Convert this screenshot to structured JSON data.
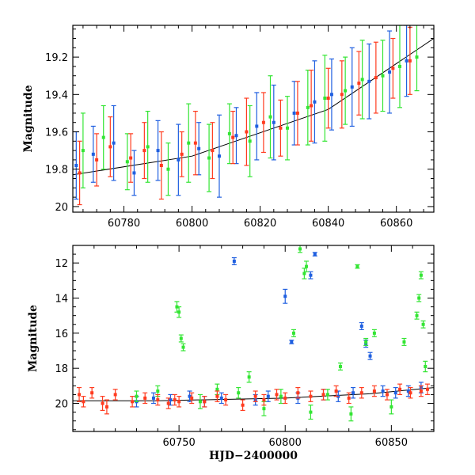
{
  "chart_data": [
    {
      "type": "scatter",
      "panel": "top",
      "xlabel": "",
      "ylabel": "Magnitude",
      "xlim": [
        60765,
        60871
      ],
      "ylim": [
        20.03,
        19.03
      ],
      "y_inverted": true,
      "xticks": [
        60780,
        60800,
        60820,
        60840,
        60860
      ],
      "yticks": [
        19.2,
        19.4,
        19.6,
        19.8,
        20
      ],
      "ytick_labels": [
        "19.2",
        "19.4",
        "19.6",
        "19.8",
        "20"
      ],
      "colors": {
        "blue": "#1f5fe0",
        "green": "#33e533",
        "red": "#ff3b1f"
      },
      "series": [
        {
          "color": "#1f5fe0",
          "x": [
            60766,
            60771,
            60777,
            60783,
            60790,
            60796,
            60802,
            60808,
            60813,
            60819,
            60824,
            60830,
            60836,
            60841,
            60847,
            60852,
            60858,
            60863
          ],
          "y": [
            19.78,
            19.72,
            19.66,
            19.82,
            19.7,
            19.75,
            19.69,
            19.73,
            19.62,
            19.57,
            19.55,
            19.5,
            19.44,
            19.4,
            19.36,
            19.33,
            19.28,
            19.22
          ],
          "err": [
            0.18,
            0.15,
            0.2,
            0.12,
            0.16,
            0.19,
            0.14,
            0.22,
            0.15,
            0.18,
            0.2,
            0.17,
            0.22,
            0.19,
            0.21,
            0.2,
            0.22,
            0.19
          ]
        },
        {
          "color": "#33e533",
          "x": [
            60768,
            60774,
            60781,
            60787,
            60793,
            60799,
            60805,
            60811,
            60817,
            60823,
            60828,
            60834,
            60839,
            60845,
            60850,
            60856,
            60861,
            60866
          ],
          "y": [
            19.7,
            19.63,
            19.76,
            19.68,
            19.8,
            19.66,
            19.74,
            19.61,
            19.65,
            19.52,
            19.58,
            19.47,
            19.42,
            19.38,
            19.32,
            19.3,
            19.25,
            19.2
          ],
          "err": [
            0.2,
            0.17,
            0.15,
            0.19,
            0.14,
            0.21,
            0.18,
            0.16,
            0.19,
            0.22,
            0.17,
            0.2,
            0.23,
            0.18,
            0.21,
            0.19,
            0.22,
            0.18
          ]
        },
        {
          "color": "#ff3b1f",
          "x": [
            60767,
            60772,
            60776,
            60782,
            60786,
            60791,
            60797,
            60801,
            60806,
            60812,
            60816,
            60821,
            60826,
            60831,
            60835,
            60840,
            60844,
            60849,
            60854,
            60859,
            60864
          ],
          "y": [
            19.82,
            19.75,
            19.68,
            19.74,
            19.7,
            19.78,
            19.72,
            19.66,
            19.7,
            19.63,
            19.6,
            19.55,
            19.58,
            19.5,
            19.46,
            19.42,
            19.4,
            19.34,
            19.31,
            19.26,
            19.22
          ],
          "err": [
            0.17,
            0.14,
            0.16,
            0.13,
            0.15,
            0.18,
            0.12,
            0.17,
            0.15,
            0.14,
            0.18,
            0.16,
            0.15,
            0.17,
            0.19,
            0.16,
            0.18,
            0.17,
            0.19,
            0.16,
            0.18
          ]
        }
      ],
      "model_line": {
        "x": [
          60765,
          60800,
          60840,
          60871
        ],
        "y": [
          19.83,
          19.73,
          19.48,
          19.1
        ]
      }
    },
    {
      "type": "scatter",
      "panel": "bottom",
      "xlabel": "HJD−2400000",
      "ylabel": "Magnitude",
      "xlim": [
        60700,
        60870
      ],
      "ylim": [
        21.6,
        11.0
      ],
      "y_inverted": true,
      "xticks": [
        60750,
        60800,
        60850
      ],
      "yticks": [
        12,
        14,
        16,
        18,
        20
      ],
      "ytick_labels": [
        "12",
        "14",
        "16",
        "18",
        "20"
      ],
      "series": [
        {
          "color": "#1f5fe0",
          "x": [
            60730,
            60738,
            60746,
            60755,
            60762,
            60770,
            60776,
            60786,
            60792,
            60800,
            60803,
            60806,
            60812,
            60814,
            60818,
            60825,
            60832,
            60836,
            60838,
            60840,
            60846,
            60852,
            60858,
            60864
          ],
          "y": [
            19.9,
            19.7,
            19.8,
            19.6,
            19.9,
            19.7,
            11.9,
            19.8,
            19.6,
            13.9,
            16.5,
            19.7,
            12.7,
            11.5,
            19.5,
            19.6,
            19.4,
            15.6,
            16.6,
            17.3,
            19.3,
            19.4,
            19.3,
            19.1
          ],
          "err": [
            0.3,
            0.3,
            0.3,
            0.3,
            0.3,
            0.3,
            0.2,
            0.3,
            0.3,
            0.4,
            0.1,
            0.3,
            0.2,
            0.1,
            0.3,
            0.3,
            0.3,
            0.2,
            0.2,
            0.2,
            0.3,
            0.3,
            0.3,
            0.3
          ]
        },
        {
          "color": "#33e533",
          "x": [
            60730,
            60740,
            60749,
            60750,
            60751,
            60752,
            60760,
            60768,
            60778,
            60783,
            60790,
            60798,
            60804,
            60807,
            60809,
            60810,
            60812,
            60820,
            60826,
            60831,
            60834,
            60838,
            60842,
            60850,
            60856,
            60862,
            60863,
            60864,
            60865,
            60866
          ],
          "y": [
            19.6,
            19.3,
            14.5,
            14.8,
            16.3,
            16.8,
            19.9,
            19.2,
            19.4,
            18.5,
            20.3,
            19.6,
            16.0,
            11.2,
            12.6,
            12.2,
            20.5,
            19.5,
            17.9,
            20.6,
            12.2,
            16.5,
            16.0,
            20.2,
            16.5,
            15.0,
            14.0,
            12.7,
            15.5,
            17.9
          ],
          "err": [
            0.3,
            0.3,
            0.3,
            0.3,
            0.2,
            0.2,
            0.4,
            0.3,
            0.3,
            0.3,
            0.4,
            0.4,
            0.2,
            0.2,
            0.3,
            0.3,
            0.4,
            0.3,
            0.2,
            0.4,
            0.1,
            0.2,
            0.2,
            0.4,
            0.2,
            0.2,
            0.2,
            0.2,
            0.2,
            0.3
          ]
        },
        {
          "color": "#ff3b1f",
          "x": [
            60703,
            60705,
            60709,
            60714,
            60716,
            60720,
            60728,
            60734,
            60740,
            60745,
            60748,
            60750,
            60756,
            60762,
            60768,
            60772,
            60780,
            60786,
            60790,
            60796,
            60800,
            60806,
            60812,
            60818,
            60824,
            60830,
            60836,
            60842,
            60848,
            60854,
            60859,
            60864,
            60867
          ],
          "y": [
            19.5,
            19.9,
            19.4,
            20.0,
            20.2,
            19.5,
            19.9,
            19.7,
            19.8,
            20.0,
            19.8,
            19.9,
            19.7,
            19.9,
            19.6,
            19.8,
            20.1,
            19.6,
            19.8,
            19.5,
            19.7,
            19.4,
            19.6,
            19.5,
            19.3,
            19.7,
            19.4,
            19.3,
            19.5,
            19.2,
            19.4,
            19.3,
            19.2
          ],
          "err": [
            0.4,
            0.3,
            0.3,
            0.4,
            0.4,
            0.3,
            0.3,
            0.3,
            0.3,
            0.3,
            0.3,
            0.3,
            0.3,
            0.3,
            0.3,
            0.3,
            0.3,
            0.3,
            0.3,
            0.3,
            0.3,
            0.3,
            0.3,
            0.3,
            0.3,
            0.3,
            0.3,
            0.3,
            0.3,
            0.3,
            0.3,
            0.3,
            0.3
          ]
        }
      ],
      "model_line": {
        "x": [
          60700,
          60740,
          60800,
          60840,
          60870
        ],
        "y": [
          19.85,
          19.85,
          19.7,
          19.45,
          19.1
        ]
      }
    }
  ]
}
